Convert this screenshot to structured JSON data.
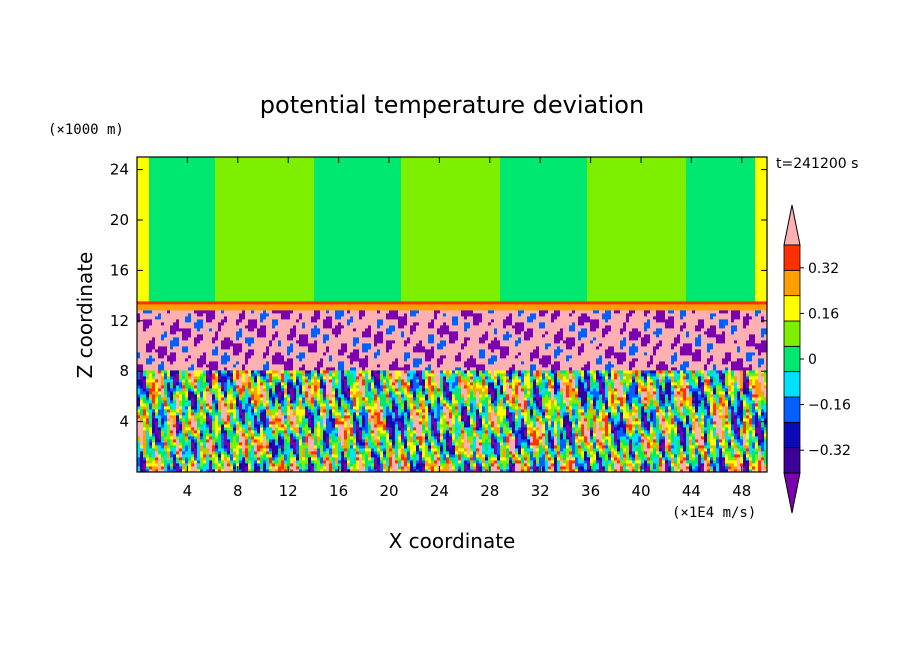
{
  "chart_data": {
    "type": "heatmap",
    "title": "potential temperature deviation",
    "xlabel": "X coordinate",
    "ylabel": "Z coordinate",
    "x_unit": "(×1E4 m/s)",
    "y_unit": "(×1000 m)",
    "time_label": "t=241200 s",
    "xlim": [
      0,
      50
    ],
    "ylim": [
      0,
      25
    ],
    "x_ticks": [
      4,
      8,
      12,
      16,
      20,
      24,
      28,
      32,
      36,
      40,
      44,
      48
    ],
    "y_ticks": [
      4,
      8,
      12,
      16,
      20,
      24
    ],
    "x_tick_labels": [
      "4",
      "8",
      "12",
      "16",
      "20",
      "24",
      "28",
      "32",
      "36",
      "40",
      "44",
      "48"
    ],
    "y_tick_labels": [
      "4",
      "8",
      "12",
      "16",
      "20",
      "24"
    ],
    "colorbar": {
      "levels": [
        -0.4,
        -0.32,
        -0.24,
        -0.16,
        -0.08,
        0,
        0.08,
        0.16,
        0.24,
        0.32,
        0.4
      ],
      "labels": [
        "0.32",
        "0.16",
        "0",
        "−0.16",
        "−0.32"
      ],
      "label_values": [
        0.32,
        0.16,
        0,
        -0.16,
        -0.32
      ],
      "colors": [
        "#7a00b0",
        "#3c0098",
        "#0a0ab8",
        "#0060ff",
        "#00e0ff",
        "#00e870",
        "#7cf000",
        "#ffff00",
        "#ffa000",
        "#ff3000",
        "#ffb0b0"
      ],
      "extend": "both"
    },
    "layers": {
      "tropopause_km": 13.3,
      "upper_band_km": [
        13.3,
        25
      ],
      "upper_value_range": [
        -0.08,
        0.08
      ],
      "mixed_layer_km": [
        8,
        13.3
      ],
      "mixed_layer_values": [
        -0.4,
        0.4
      ],
      "convective_layer_km": [
        0,
        8
      ],
      "convective_value_range": [
        -0.4,
        0.4
      ]
    }
  }
}
